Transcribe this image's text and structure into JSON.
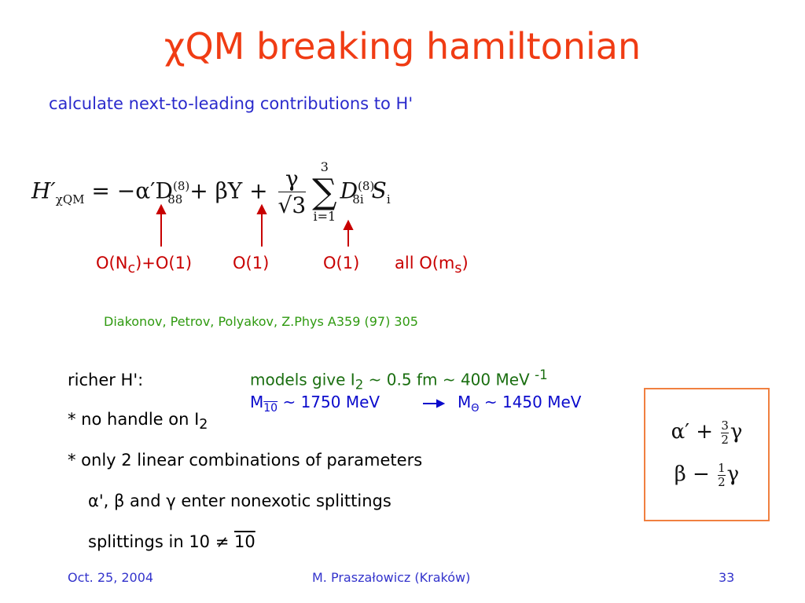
{
  "header": {
    "title": "χQM breaking hamiltonian",
    "subtitle": "calculate next-to-leading contributions to H'"
  },
  "formula": {
    "lhs": "H′",
    "lhs_sub": "χQM",
    "eq": " = −α′D",
    "d1_sup": "(8)",
    "d1_sub": "88",
    "mid": " + βY + ",
    "frac_num": "γ",
    "frac_den": "√3",
    "sum_top": "3",
    "sum": "∑",
    "sum_bottom": "i=1",
    "d2": "D",
    "d2_sup": "(8)",
    "d2_sub": "8i",
    "s": "S",
    "s_sub": "i"
  },
  "order_labels": [
    [
      "O(N",
      "c",
      ")+O(1)"
    ],
    [
      "O(1)"
    ],
    [
      "O(1)"
    ],
    [
      "all O(m",
      "s",
      ")"
    ]
  ],
  "reference": "Diakonov, Petrov, Polyakov,  Z.Phys A359 (97) 305",
  "list": [
    [
      "richer H':"
    ],
    [
      "* no handle on I",
      "2"
    ],
    [
      "* only 2 linear combinations of parameters"
    ],
    [
      "α', β and γ enter nonexotic splittings"
    ],
    [
      "splittings in 10 ≠ ",
      "10"
    ]
  ],
  "models": [
    [
      "models give I",
      "2",
      " ~ 0.5 fm ~ 400 MeV ",
      "-1"
    ],
    [
      "M",
      "10",
      " ~ 1750 MeV"
    ],
    [
      "M",
      "Θ",
      " ~ 1450 MeV"
    ]
  ],
  "box": [
    [
      "α′ + ",
      "3",
      "2",
      "γ"
    ],
    [
      "β − ",
      "1",
      "2",
      "γ"
    ]
  ],
  "footer": {
    "date": "Oct. 25, 2004",
    "author": "M. Praszałowicz (Kraków)",
    "page": "33"
  }
}
